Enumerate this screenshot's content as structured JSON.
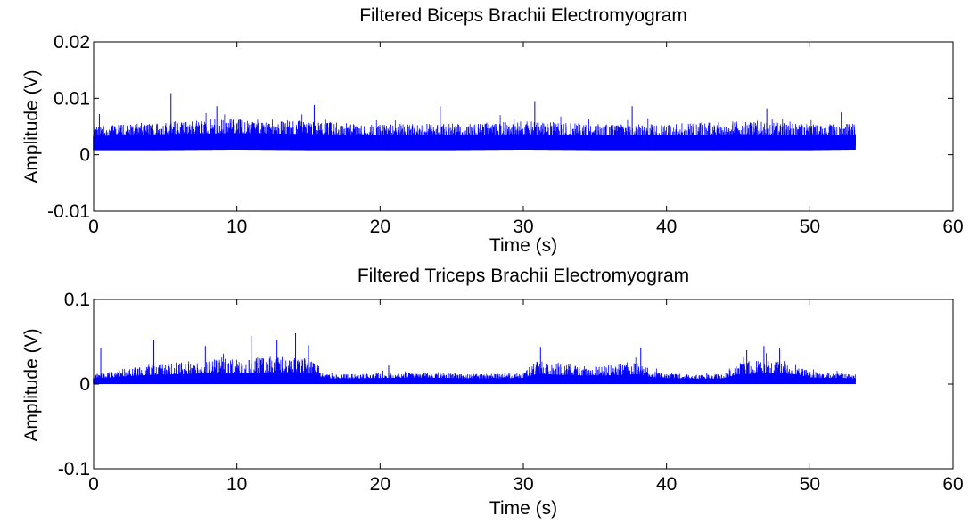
{
  "colors": {
    "trace": "#0000ff",
    "axes": "#000000",
    "background": "#ffffff"
  },
  "chart_data": [
    {
      "type": "line",
      "title": "Filtered Biceps Brachii Electromyogram",
      "xlabel": "Time (s)",
      "ylabel": "Amplitude (V)",
      "xlim": [
        0,
        60
      ],
      "ylim": [
        -0.01,
        0.02
      ],
      "xticks": [
        0,
        10,
        20,
        30,
        40,
        50,
        60
      ],
      "xtick_labels": [
        "0",
        "10",
        "20",
        "30",
        "40",
        "50",
        "60"
      ],
      "yticks": [
        -0.01,
        0,
        0.01,
        0.02
      ],
      "ytick_labels": [
        "-0.01",
        "0",
        "0.01",
        "0.02"
      ],
      "grid": false,
      "series": [
        {
          "signal_duration_s": 53.2,
          "baseline_v": 0.0024,
          "envelope": {
            "t": [
              0,
              5,
              10,
              15,
              20,
              25,
              30,
              35,
              40,
              45,
              50,
              53.2
            ],
            "upper": [
              0.005,
              0.006,
              0.0065,
              0.006,
              0.0055,
              0.0055,
              0.006,
              0.0055,
              0.0055,
              0.006,
              0.0055,
              0.0055
            ],
            "lower": [
              0.0008,
              0.0008,
              0.0009,
              0.0008,
              0.0008,
              0.0008,
              0.0009,
              0.0008,
              0.0008,
              0.0008,
              0.0008,
              0.0009
            ]
          },
          "peaks": [
            {
              "t": 0.4,
              "v": 0.0072
            },
            {
              "t": 5.4,
              "v": 0.0109
            },
            {
              "t": 8.6,
              "v": 0.0086
            },
            {
              "t": 15.4,
              "v": 0.0088
            },
            {
              "t": 24.2,
              "v": 0.0086
            },
            {
              "t": 30.8,
              "v": 0.0095
            },
            {
              "t": 37.6,
              "v": 0.0086
            },
            {
              "t": 47.0,
              "v": 0.0082
            },
            {
              "t": 52.2,
              "v": 0.0075
            }
          ]
        }
      ]
    },
    {
      "type": "line",
      "title": "Filtered Triceps Brachii Electromyogram",
      "xlabel": "Time (s)",
      "ylabel": "Amplitude (V)",
      "xlim": [
        0,
        60
      ],
      "ylim": [
        -0.1,
        0.1
      ],
      "xticks": [
        0,
        10,
        20,
        30,
        40,
        50,
        60
      ],
      "xtick_labels": [
        "0",
        "10",
        "20",
        "30",
        "40",
        "50",
        "60"
      ],
      "yticks": [
        -0.1,
        0,
        0.1
      ],
      "ytick_labels": [
        "-0.1",
        "0",
        "0.1"
      ],
      "grid": false,
      "series": [
        {
          "signal_duration_s": 53.2,
          "baseline_v": 0.004,
          "envelope": {
            "t": [
              0,
              1,
              2,
              4,
              6,
              8,
              10,
              12,
              14,
              15.5,
              16,
              18,
              20,
              22,
              24,
              26,
              28,
              30,
              31,
              32,
              34,
              36,
              38,
              39,
              40,
              42,
              44,
              45,
              47,
              49,
              50,
              52,
              53.2
            ],
            "upper": [
              0.012,
              0.014,
              0.018,
              0.024,
              0.026,
              0.03,
              0.03,
              0.032,
              0.033,
              0.03,
              0.012,
              0.012,
              0.013,
              0.014,
              0.014,
              0.012,
              0.012,
              0.013,
              0.028,
              0.025,
              0.022,
              0.022,
              0.026,
              0.016,
              0.013,
              0.011,
              0.012,
              0.026,
              0.03,
              0.026,
              0.015,
              0.013,
              0.012
            ],
            "lower": [
              0.0,
              0.0,
              0.0,
              0.0,
              0.0,
              0.0,
              0.0,
              0.0,
              0.0,
              0.0,
              0.0,
              0.0,
              0.0,
              0.0,
              0.0,
              0.0,
              0.0,
              0.0,
              0.0,
              0.0,
              0.0,
              0.0,
              0.0,
              0.0,
              0.0,
              0.0,
              0.0,
              0.0,
              0.0,
              0.0,
              0.0,
              0.0,
              0.0
            ]
          },
          "peaks": [
            {
              "t": 0.5,
              "v": 0.043
            },
            {
              "t": 4.2,
              "v": 0.052
            },
            {
              "t": 7.8,
              "v": 0.045
            },
            {
              "t": 11.0,
              "v": 0.057
            },
            {
              "t": 12.8,
              "v": 0.052
            },
            {
              "t": 14.1,
              "v": 0.06
            },
            {
              "t": 15.0,
              "v": 0.046
            },
            {
              "t": 20.6,
              "v": 0.022
            },
            {
              "t": 31.2,
              "v": 0.044
            },
            {
              "t": 38.2,
              "v": 0.043
            },
            {
              "t": 45.6,
              "v": 0.04
            },
            {
              "t": 46.8,
              "v": 0.045
            },
            {
              "t": 47.9,
              "v": 0.042
            }
          ]
        }
      ]
    }
  ]
}
